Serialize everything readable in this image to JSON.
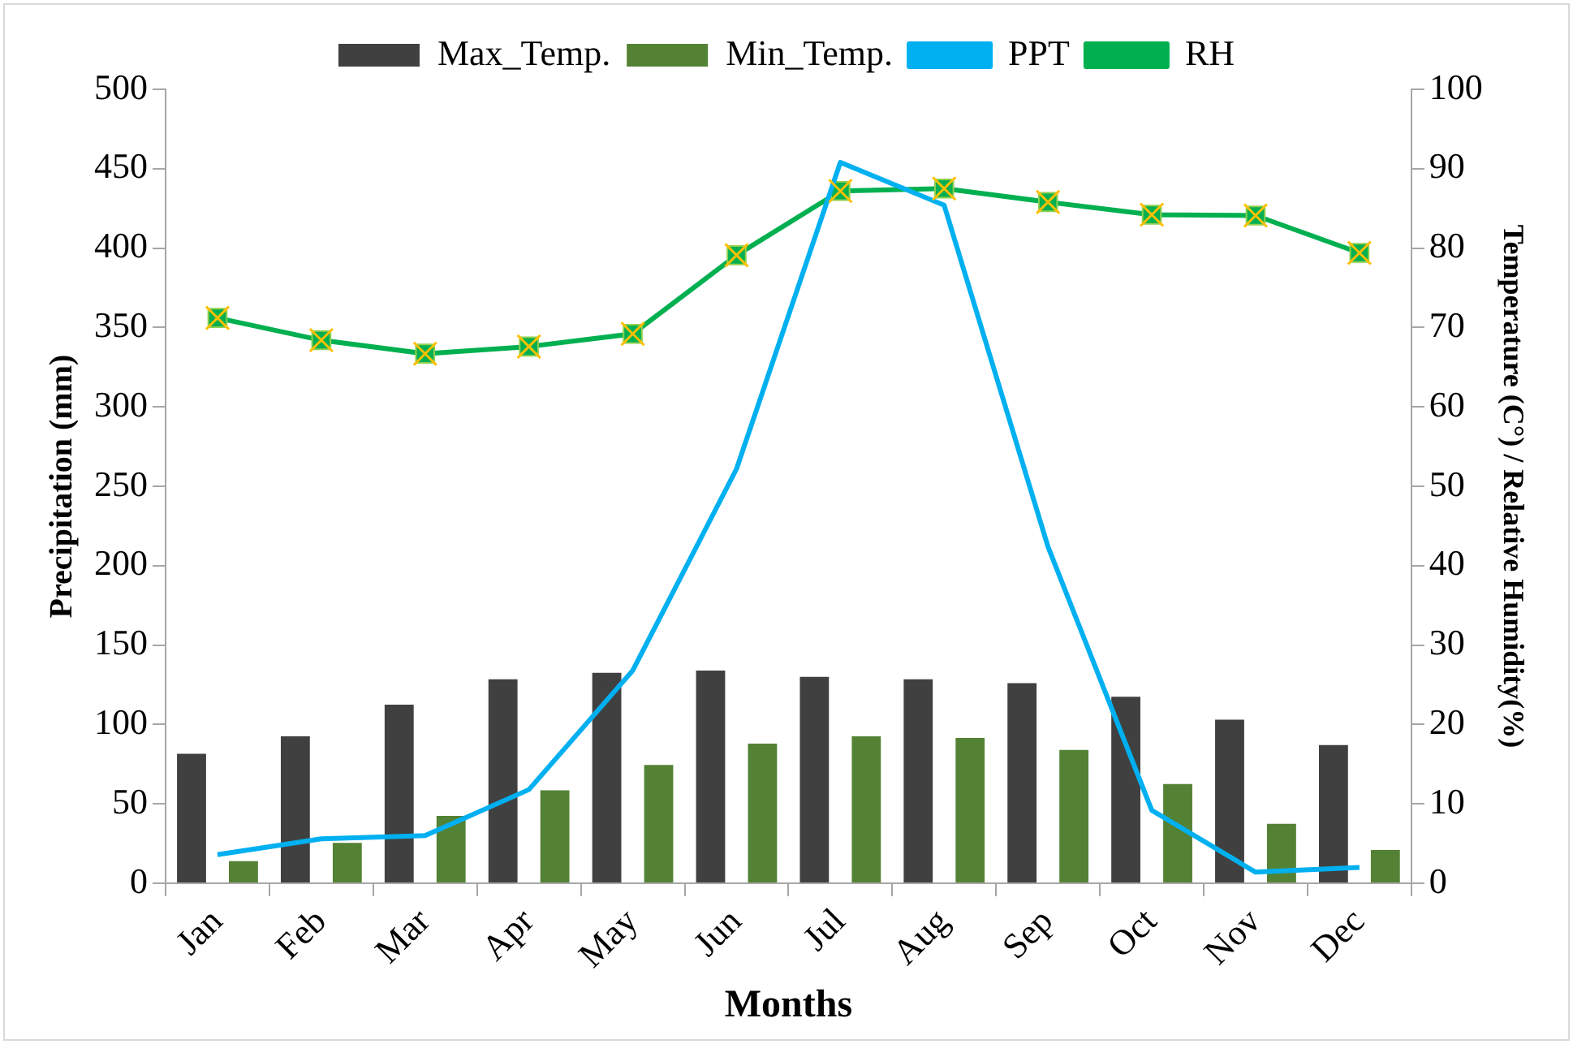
{
  "chart_data": {
    "type": "bar",
    "xlabel": "Months",
    "ylabel": "Precipitation (mm)",
    "y2label": "Temperature (C°) / Relative Humidity(%)",
    "categories": [
      "Jan",
      "Feb",
      "Mar",
      "Apr",
      "May",
      "Jun",
      "Jul",
      "Aug",
      "Sep",
      "Oct",
      "Nov",
      "Dec"
    ],
    "series": [
      {
        "name": "Max_Temp.",
        "axis": "y2",
        "color": "#404040",
        "values": [
          16.3,
          18.5,
          22.5,
          25.7,
          26.5,
          26.8,
          26.0,
          25.7,
          25.2,
          23.5,
          20.6,
          17.4
        ]
      },
      {
        "name": "Min_Temp.",
        "axis": "y2",
        "color": "#548235",
        "values": [
          2.8,
          5.1,
          8.5,
          11.7,
          14.9,
          17.6,
          18.5,
          18.3,
          16.8,
          12.5,
          7.5,
          4.2
        ]
      },
      {
        "name": "PPT",
        "type": "line",
        "axis": "y",
        "color": "#00b0f0",
        "marker": "none",
        "values": [
          18,
          28,
          30,
          59,
          134,
          261,
          454,
          427,
          212,
          46,
          7,
          10
        ]
      },
      {
        "name": "RH",
        "type": "line",
        "axis": "y2",
        "color": "#00b050",
        "marker": "square",
        "values": [
          71.2,
          68.4,
          66.7,
          67.6,
          69.2,
          79.1,
          87.2,
          87.5,
          85.8,
          84.2,
          84.1,
          79.4
        ]
      }
    ],
    "ylim": [
      0,
      500
    ],
    "yticks": [
      0,
      50,
      100,
      150,
      200,
      250,
      300,
      350,
      400,
      450,
      500
    ],
    "y2lim": [
      0,
      100
    ],
    "y2ticks": [
      0,
      10,
      20,
      30,
      40,
      50,
      60,
      70,
      80,
      90,
      100
    ],
    "grid": false,
    "legend": "top",
    "line_style": "solid"
  }
}
